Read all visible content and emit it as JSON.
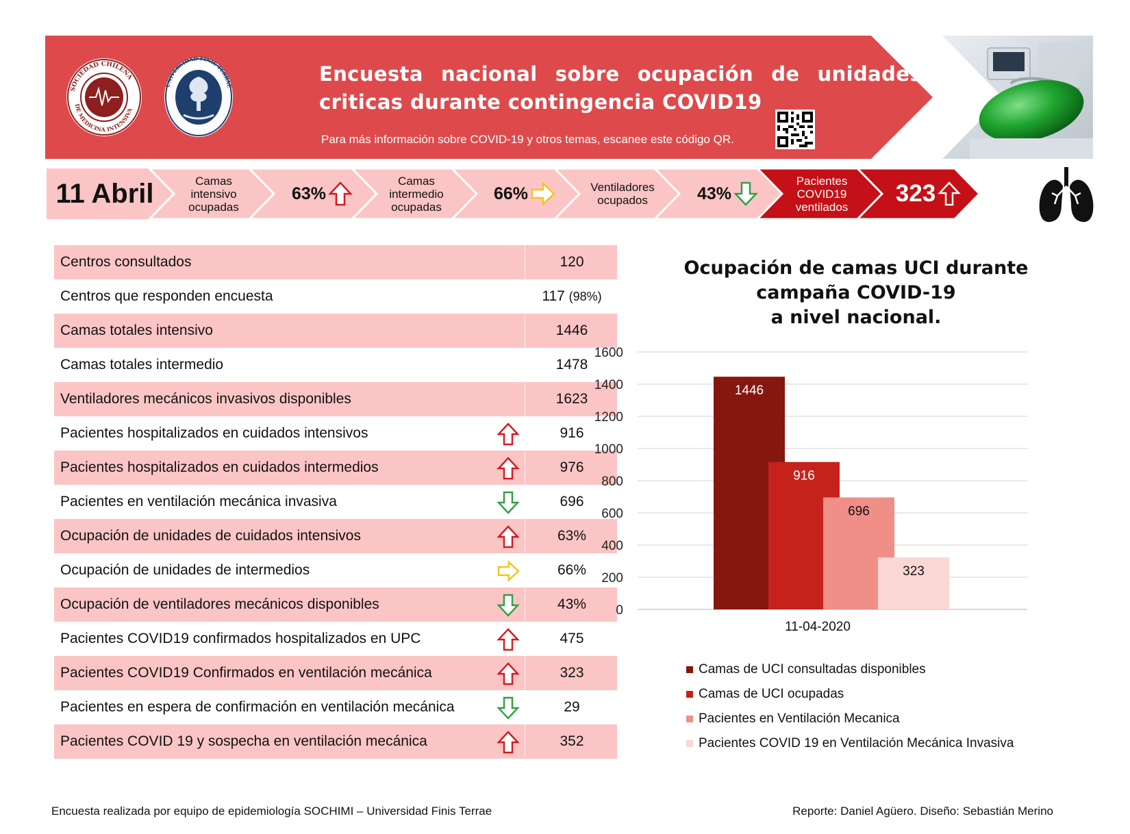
{
  "header": {
    "title": "Encuesta nacional sobre ocupación de unidades criticas durante contingencia COVID19",
    "subtitle": "Para más información sobre COVID-19 y otros temas, escanee este código QR.",
    "logo1_text": "SOCIEDAD CHILENA DE MEDICINA INTENSIVA",
    "logo2_text": "UNIVERSIDAD FINIS TERRAE",
    "colors": {
      "banner": "#de4a4c",
      "banner_dark": "#c0141c"
    }
  },
  "kpis": {
    "date": "11 Abril",
    "icu_label": "Camas intensivo ocupadas",
    "icu_value": "63%",
    "icu_trend": "up",
    "inter_label": "Camas intermedio ocupadas",
    "inter_value": "66%",
    "inter_trend": "flat",
    "vent_label": "Ventiladores ocupados",
    "vent_value": "43%",
    "vent_trend": "down",
    "covid_label": "Pacientes COVID19 ventilados",
    "covid_value": "323",
    "covid_trend": "up"
  },
  "table": {
    "rows": [
      {
        "label": "Centros consultados",
        "value": "120",
        "trend": "none"
      },
      {
        "label": "Centros que responden encuesta",
        "value": "117",
        "value_extra": "(98%)",
        "trend": "none"
      },
      {
        "label": "Camas totales intensivo",
        "value": "1446",
        "trend": "none"
      },
      {
        "label": "Camas totales intermedio",
        "value": "1478",
        "trend": "none"
      },
      {
        "label": "Ventiladores mecánicos invasivos disponibles",
        "value": "1623",
        "trend": "none"
      },
      {
        "label": "Pacientes hospitalizados en cuidados intensivos",
        "value": "916",
        "trend": "up"
      },
      {
        "label": "Pacientes hospitalizados en cuidados intermedios",
        "value": "976",
        "trend": "up"
      },
      {
        "label": "Pacientes en ventilación mecánica invasiva",
        "value": "696",
        "trend": "down"
      },
      {
        "label": "Ocupación de unidades de cuidados intensivos",
        "value": "63%",
        "trend": "up"
      },
      {
        "label": "Ocupación de unidades de intermedios",
        "value": "66%",
        "trend": "flat"
      },
      {
        "label": "Ocupación de ventiladores mecánicos disponibles",
        "value": "43%",
        "trend": "down"
      },
      {
        "label": "Pacientes COVID19 confirmados hospitalizados en UPC",
        "value": "475",
        "trend": "up"
      },
      {
        "label": "Pacientes COVID19 Confirmados en ventilación mecánica",
        "value": "323",
        "trend": "up"
      },
      {
        "label": "Pacientes en espera de confirmación en ventilación mecánica",
        "value": "29",
        "trend": "down"
      },
      {
        "label": "Pacientes COVID 19 y sospecha en ventilación mecánica",
        "value": "352",
        "trend": "up"
      }
    ]
  },
  "chart_data": {
    "type": "bar",
    "title": "Ocupación de camas UCI durante campaña COVID-19 a nivel nacional.",
    "title_lines": [
      "Ocupación de camas UCI durante",
      "campaña COVID-19",
      "a nivel nacional."
    ],
    "categories": [
      "11-04-2020"
    ],
    "ylim": [
      0,
      1600
    ],
    "yticks": [
      0,
      200,
      400,
      600,
      800,
      1000,
      1200,
      1400,
      1600
    ],
    "grid": true,
    "legend_position": "bottom",
    "overlapping_bars": true,
    "series": [
      {
        "name": "Camas de UCI consultadas disponibles",
        "values": [
          1446
        ],
        "color": "#861610"
      },
      {
        "name": "Camas de UCI ocupadas",
        "values": [
          916
        ],
        "color": "#c5221b"
      },
      {
        "name": "Pacientes en Ventilación Mecanica",
        "values": [
          696
        ],
        "color": "#ef8f88"
      },
      {
        "name": "Pacientes COVID 19 en Ventilación Mecánica Invasiva",
        "values": [
          323
        ],
        "color": "#fbd7d5"
      }
    ]
  },
  "footer": {
    "left": "Encuesta realizada por equipo de epidemiología SOCHIMI – Universidad Finis Terrae",
    "right": "Reporte: Daniel Agüero. Diseño: Sebastián Merino"
  }
}
